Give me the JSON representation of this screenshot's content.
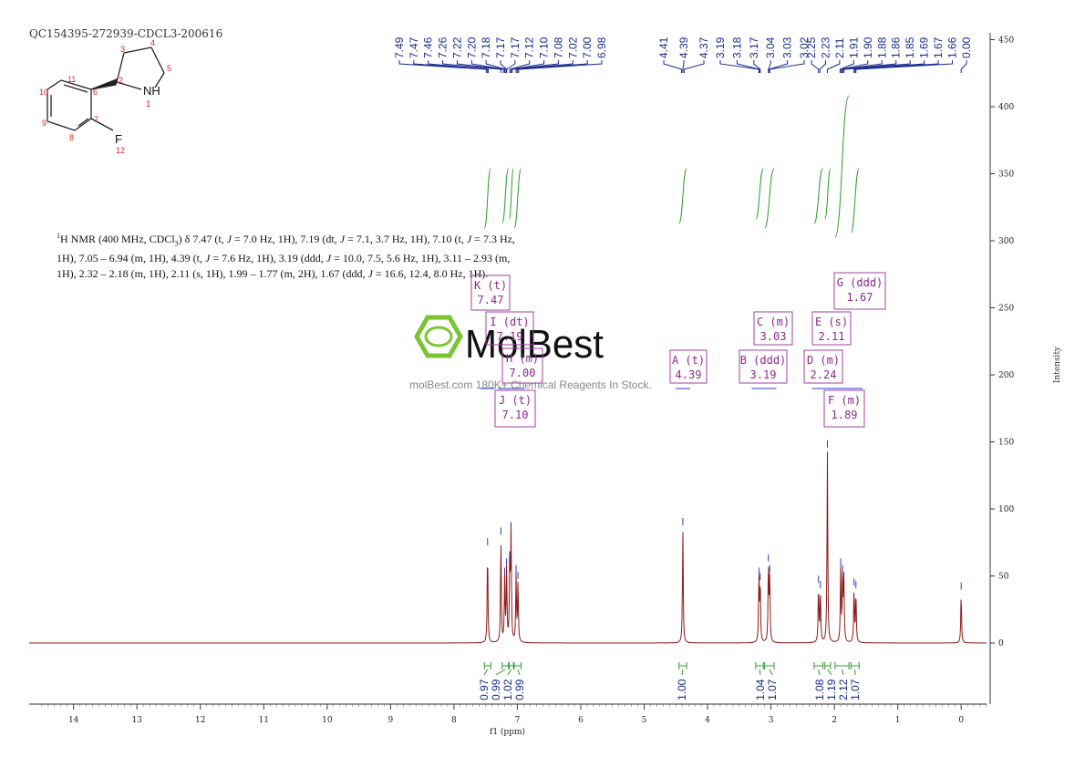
{
  "sample_id": "QC154395-272939-CDCL3-200616",
  "nmr_description_lines": [
    "1H NMR (400 MHz, CDCl3) δ 7.47 (t, J = 7.0 Hz, 1H), 7.19 (dt, J = 7.1, 3.7 Hz, 1H), 7.10 (t, J = 7.3 Hz,",
    "1H), 7.05 – 6.94 (m, 1H), 4.39 (t, J = 7.6 Hz, 1H), 3.19 (ddd, J = 10.0, 7.5, 5.6 Hz, 1H), 3.11 – 2.93 (m,",
    "1H), 2.32 – 2.18 (m, 1H), 2.11 (s, 1H), 1.99 – 1.77 (m, 2H), 1.67 (ddd, J = 16.6, 12.4, 8.0 Hz, 1H)."
  ],
  "watermark": {
    "brand": "MolBest",
    "tagline": "molBest.com 180K+ Chemical Reagents In Stock."
  },
  "molecule_atom_labels": [
    "NH",
    "1",
    "2",
    "3",
    "4",
    "5",
    "6",
    "7",
    "8",
    "9",
    "10",
    "11",
    "F",
    "12"
  ],
  "chart_data": {
    "type": "line",
    "title": "",
    "xlabel": "f1 (ppm)",
    "ylabel": "Intensity",
    "x_reversed": true,
    "xlim": [
      14.7,
      -0.4
    ],
    "ylim": [
      -45,
      455
    ],
    "x_ticks": [
      14,
      13,
      12,
      11,
      10,
      9,
      8,
      7,
      6,
      5,
      4,
      3,
      2,
      1,
      0
    ],
    "y_ticks": [
      0,
      50,
      100,
      150,
      200,
      250,
      300,
      350,
      400,
      450
    ],
    "peak_labels": [
      "7.49",
      "7.47",
      "7.46",
      "7.26",
      "7.22",
      "7.20",
      "7.18",
      "7.17",
      "7.17",
      "7.12",
      "7.10",
      "7.08",
      "7.02",
      "7.00",
      "6.98",
      "4.41",
      "4.39",
      "4.37",
      "3.19",
      "3.18",
      "3.17",
      "3.04",
      "3.03",
      "3.02",
      "2.25",
      "2.23",
      "2.11",
      "1.91",
      "1.90",
      "1.88",
      "1.86",
      "1.85",
      "1.69",
      "1.67",
      "1.66",
      "0.00"
    ],
    "peaks": [
      {
        "ppm": 7.47,
        "h": 70
      },
      {
        "ppm": 7.26,
        "h": 78
      },
      {
        "ppm": 7.2,
        "h": 48
      },
      {
        "ppm": 7.17,
        "h": 55
      },
      {
        "ppm": 7.12,
        "h": 60
      },
      {
        "ppm": 7.1,
        "h": 82
      },
      {
        "ppm": 7.02,
        "h": 50
      },
      {
        "ppm": 6.99,
        "h": 45
      },
      {
        "ppm": 4.39,
        "h": 85
      },
      {
        "ppm": 3.19,
        "h": 48
      },
      {
        "ppm": 3.17,
        "h": 44
      },
      {
        "ppm": 3.04,
        "h": 58
      },
      {
        "ppm": 3.02,
        "h": 50
      },
      {
        "ppm": 2.25,
        "h": 42
      },
      {
        "ppm": 2.22,
        "h": 38
      },
      {
        "ppm": 2.11,
        "h": 143
      },
      {
        "ppm": 1.9,
        "h": 55
      },
      {
        "ppm": 1.87,
        "h": 50
      },
      {
        "ppm": 1.85,
        "h": 45
      },
      {
        "ppm": 1.69,
        "h": 40
      },
      {
        "ppm": 1.66,
        "h": 38
      },
      {
        "ppm": 0.0,
        "h": 37
      }
    ],
    "integrals": [
      {
        "range": [
          7.52,
          7.42
        ],
        "value": "0.97"
      },
      {
        "range": [
          7.24,
          7.14
        ],
        "value": "0.99"
      },
      {
        "range": [
          7.13,
          7.06
        ],
        "value": "1.02"
      },
      {
        "range": [
          7.05,
          6.94
        ],
        "value": "0.99"
      },
      {
        "range": [
          4.45,
          4.33
        ],
        "value": "1.00"
      },
      {
        "range": [
          3.24,
          3.12
        ],
        "value": "1.04"
      },
      {
        "range": [
          3.1,
          2.95
        ],
        "value": "1.07"
      },
      {
        "range": [
          2.32,
          2.18
        ],
        "value": "1.08"
      },
      {
        "range": [
          2.15,
          2.06
        ],
        "value": "1.19"
      },
      {
        "range": [
          1.99,
          1.77
        ],
        "value": "2.12"
      },
      {
        "range": [
          1.74,
          1.61
        ],
        "value": "1.07"
      }
    ],
    "multiplets": [
      {
        "letter": "K (t)",
        "shift": "7.47"
      },
      {
        "letter": "I (dt)",
        "shift": "7.19"
      },
      {
        "letter": "H (m)",
        "shift": "7.00"
      },
      {
        "letter": "J (t)",
        "shift": "7.10"
      },
      {
        "letter": "A (t)",
        "shift": "4.39"
      },
      {
        "letter": "B (ddd)",
        "shift": "3.19"
      },
      {
        "letter": "C (m)",
        "shift": "3.03"
      },
      {
        "letter": "D (m)",
        "shift": "2.24"
      },
      {
        "letter": "E (s)",
        "shift": "2.11"
      },
      {
        "letter": "F (m)",
        "shift": "1.89"
      },
      {
        "letter": "G (ddd)",
        "shift": "1.67"
      }
    ]
  }
}
